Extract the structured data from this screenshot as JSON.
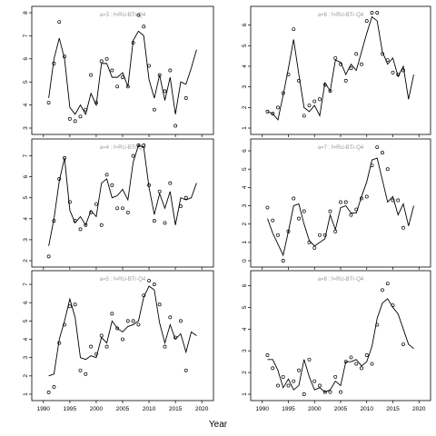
{
  "figure": {
    "xlabel": "Year"
  },
  "colors": {
    "line": "#000000",
    "points": "#000000",
    "title": "#999999",
    "frame": "#000000"
  },
  "chart_data": [
    {
      "type": "line",
      "title": "a=3 : f=RU-BTr-Q4",
      "xlim": [
        1989,
        2021
      ],
      "ylim": [
        3,
        8
      ],
      "yticks": [
        3,
        4,
        5,
        6,
        7,
        8
      ],
      "series": [
        {
          "type": "line",
          "x": [
            1991,
            1992,
            1993,
            1994,
            1995,
            1996,
            1997,
            1998,
            1999,
            2000,
            2001,
            2002,
            2003,
            2004,
            2005,
            2006,
            2007,
            2008,
            2009,
            2010,
            2011,
            2012,
            2013,
            2014,
            2015,
            2016,
            2017,
            2018,
            2019
          ],
          "y": [
            4.3,
            6.0,
            6.9,
            6.0,
            3.9,
            3.6,
            4.0,
            3.6,
            4.5,
            4.0,
            5.8,
            5.8,
            5.2,
            5.2,
            5.4,
            4.8,
            6.8,
            7.2,
            7.0,
            5.1,
            4.3,
            5.3,
            4.2,
            5.2,
            3.6,
            5.0,
            4.9,
            5.6,
            6.4
          ]
        },
        {
          "type": "scatter",
          "x": [
            1991,
            1992,
            1993,
            1994,
            1995,
            1996,
            1997,
            1998,
            1999,
            2000,
            2001,
            2002,
            2003,
            2004,
            2005,
            2006,
            2007,
            2008,
            2009,
            2010,
            2011,
            2012,
            2013,
            2014,
            2015,
            2017
          ],
          "y": [
            4.1,
            5.8,
            7.6,
            6.1,
            3.4,
            3.3,
            3.5,
            3.8,
            5.3,
            4.1,
            5.9,
            6.0,
            5.5,
            4.8,
            5.2,
            4.8,
            6.7,
            7.9,
            7.4,
            5.7,
            3.8,
            5.3,
            4.6,
            5.5,
            3.1,
            4.3
          ]
        }
      ],
      "xticks": [
        1990,
        1995,
        2000,
        2005,
        2010,
        2015,
        2020
      ],
      "show_xtick_labels": false
    },
    {
      "type": "line",
      "title": "a=6 : f=RU-BTr-Q4",
      "xlim": [
        1989,
        2021
      ],
      "ylim": [
        1,
        6.6
      ],
      "yticks": [
        1,
        2,
        3,
        4,
        5,
        6
      ],
      "series": [
        {
          "type": "line",
          "x": [
            1991,
            1992,
            1993,
            1994,
            1995,
            1996,
            1997,
            1998,
            1999,
            2000,
            2001,
            2002,
            2003,
            2004,
            2005,
            2006,
            2007,
            2008,
            2009,
            2010,
            2011,
            2012,
            2013,
            2014,
            2015,
            2016,
            2017,
            2018,
            2019
          ],
          "y": [
            1.8,
            1.7,
            1.4,
            2.6,
            3.9,
            5.3,
            3.6,
            2.0,
            1.8,
            2.1,
            1.6,
            3.2,
            2.8,
            4.3,
            4.2,
            3.6,
            4.1,
            3.8,
            4.7,
            5.6,
            6.4,
            6.2,
            4.7,
            4.1,
            4.4,
            3.5,
            4.0,
            2.4,
            3.6
          ]
        },
        {
          "type": "scatter",
          "x": [
            1991,
            1992,
            1993,
            1994,
            1995,
            1996,
            1997,
            1998,
            1999,
            2000,
            2001,
            2002,
            2003,
            2004,
            2005,
            2006,
            2007,
            2008,
            2009,
            2010,
            2011,
            2012,
            2013,
            2014,
            2015,
            2016,
            2017
          ],
          "y": [
            1.8,
            1.7,
            2.0,
            2.7,
            3.6,
            5.8,
            3.3,
            1.6,
            2.1,
            2.3,
            2.4,
            3.1,
            2.8,
            4.4,
            4.1,
            3.3,
            3.9,
            4.6,
            4.1,
            6.2,
            6.6,
            6.6,
            4.6,
            4.3,
            3.7,
            3.6,
            3.8
          ]
        }
      ],
      "xticks": [
        1990,
        1995,
        2000,
        2005,
        2010,
        2015,
        2020
      ],
      "show_xtick_labels": false
    },
    {
      "type": "line",
      "title": "a=4 : f=RU-BTr-Q4",
      "xlim": [
        1989,
        2021
      ],
      "ylim": [
        2,
        7.5
      ],
      "yticks": [
        2,
        3,
        4,
        5,
        6,
        7
      ],
      "series": [
        {
          "type": "line",
          "x": [
            1991,
            1992,
            1993,
            1994,
            1995,
            1996,
            1997,
            1998,
            1999,
            2000,
            2001,
            2002,
            2003,
            2004,
            2005,
            2006,
            2007,
            2008,
            2009,
            2010,
            2011,
            2012,
            2013,
            2014,
            2015,
            2016,
            2017,
            2018,
            2019
          ],
          "y": [
            2.7,
            4.0,
            5.8,
            6.9,
            4.4,
            3.8,
            4.1,
            3.7,
            4.4,
            4.1,
            5.7,
            5.9,
            5.0,
            5.1,
            5.4,
            4.9,
            6.7,
            7.5,
            7.4,
            5.5,
            4.2,
            5.2,
            4.5,
            5.3,
            3.7,
            5.0,
            4.9,
            5.0,
            5.7
          ]
        },
        {
          "type": "scatter",
          "x": [
            1991,
            1992,
            1993,
            1994,
            1995,
            1996,
            1997,
            1998,
            1999,
            2000,
            2001,
            2002,
            2003,
            2004,
            2005,
            2006,
            2007,
            2008,
            2009,
            2010,
            2011,
            2012,
            2013,
            2014,
            2016,
            2017
          ],
          "y": [
            2.2,
            3.9,
            5.9,
            6.9,
            4.8,
            3.9,
            3.5,
            3.7,
            4.3,
            4.7,
            3.7,
            6.1,
            5.6,
            4.5,
            4.5,
            4.3,
            7.0,
            7.5,
            7.5,
            5.6,
            3.9,
            5.3,
            3.8,
            5.7,
            4.6,
            5.0
          ]
        }
      ],
      "xticks": [
        1990,
        1995,
        2000,
        2005,
        2010,
        2015,
        2020
      ],
      "show_xtick_labels": false
    },
    {
      "type": "line",
      "title": "a=7 : f=RU-BTr-Q4",
      "xlim": [
        1989,
        2021
      ],
      "ylim": [
        0,
        6.3
      ],
      "yticks": [
        0,
        1,
        2,
        3,
        4,
        5,
        6
      ],
      "series": [
        {
          "type": "line",
          "x": [
            1991,
            1992,
            1993,
            1994,
            1995,
            1996,
            1997,
            1998,
            1999,
            2000,
            2001,
            2002,
            2003,
            2004,
            2005,
            2006,
            2007,
            2008,
            2009,
            2010,
            2011,
            2012,
            2013,
            2014,
            2015,
            2016,
            2017,
            2018,
            2019
          ],
          "y": [
            2.3,
            1.5,
            0.9,
            0.3,
            1.6,
            3.0,
            3.1,
            2.0,
            1.1,
            0.8,
            1.0,
            1.2,
            2.5,
            1.7,
            2.9,
            3.0,
            2.6,
            2.6,
            3.5,
            4.3,
            5.5,
            5.6,
            4.4,
            3.2,
            3.5,
            2.5,
            3.1,
            1.9,
            3.0
          ]
        },
        {
          "type": "scatter",
          "x": [
            1991,
            1992,
            1993,
            1994,
            1995,
            1996,
            1997,
            1998,
            1999,
            2000,
            2001,
            2002,
            2003,
            2004,
            2005,
            2006,
            2007,
            2008,
            2009,
            2010,
            2011,
            2012,
            2013,
            2014,
            2015,
            2016,
            2017
          ],
          "y": [
            2.9,
            2.2,
            1.4,
            0.0,
            1.6,
            3.4,
            2.3,
            2.7,
            1.0,
            0.7,
            1.4,
            1.4,
            2.7,
            1.6,
            3.2,
            3.2,
            2.5,
            2.8,
            3.4,
            3.5,
            5.2,
            6.2,
            5.9,
            5.0,
            3.3,
            3.3,
            1.8
          ]
        }
      ],
      "xticks": [
        1990,
        1995,
        2000,
        2005,
        2010,
        2015,
        2020
      ],
      "show_xtick_labels": false
    },
    {
      "type": "line",
      "title": "a=5 : f=RU-BTr-Q4",
      "xlim": [
        1989,
        2021
      ],
      "ylim": [
        1,
        7.4
      ],
      "yticks": [
        1,
        2,
        3,
        4,
        5,
        6,
        7
      ],
      "series": [
        {
          "type": "line",
          "x": [
            1991,
            1992,
            1993,
            1994,
            1995,
            1996,
            1997,
            1998,
            1999,
            2000,
            2001,
            2002,
            2003,
            2004,
            2005,
            2006,
            2007,
            2008,
            2009,
            2010,
            2011,
            2012,
            2013,
            2014,
            2015,
            2016,
            2017,
            2018,
            2019
          ],
          "y": [
            2.0,
            2.1,
            4.0,
            5.0,
            6.2,
            5.2,
            3.0,
            2.9,
            3.1,
            3.0,
            4.1,
            3.8,
            5.0,
            4.6,
            4.4,
            4.7,
            4.8,
            5.0,
            6.3,
            6.9,
            6.7,
            4.9,
            3.8,
            4.8,
            4.0,
            4.3,
            3.3,
            4.4,
            4.2
          ]
        },
        {
          "type": "scatter",
          "x": [
            1991,
            1992,
            1993,
            1994,
            1995,
            1996,
            1997,
            1998,
            1999,
            2000,
            2001,
            2002,
            2003,
            2004,
            2005,
            2006,
            2007,
            2008,
            2009,
            2010,
            2011,
            2012,
            2013,
            2014,
            2015,
            2016,
            2017
          ],
          "y": [
            1.1,
            1.4,
            3.8,
            4.8,
            5.8,
            5.9,
            2.3,
            2.1,
            3.6,
            3.2,
            4.2,
            3.6,
            5.4,
            4.6,
            4.0,
            5.0,
            5.0,
            4.8,
            6.4,
            7.2,
            7.0,
            5.9,
            3.6,
            5.2,
            4.1,
            5.0,
            2.3
          ]
        }
      ],
      "xticks": [
        1990,
        1995,
        2000,
        2005,
        2010,
        2015,
        2020
      ],
      "show_xtick_labels": true
    },
    {
      "type": "line",
      "title": "a=8 : f=RU-BTr-Q4",
      "xlim": [
        1989,
        2021
      ],
      "ylim": [
        1,
        6.4
      ],
      "yticks": [
        1,
        2,
        3,
        4,
        5,
        6
      ],
      "series": [
        {
          "type": "line",
          "x": [
            1991,
            1992,
            1993,
            1994,
            1995,
            1996,
            1997,
            1998,
            1999,
            2000,
            2001,
            2002,
            2003,
            2004,
            2005,
            2006,
            2007,
            2008,
            2009,
            2010,
            2011,
            2012,
            2013,
            2014,
            2015,
            2016,
            2017,
            2018,
            2019
          ],
          "y": [
            2.6,
            2.6,
            2.1,
            1.3,
            1.7,
            1.2,
            1.4,
            2.6,
            1.8,
            1.2,
            1.3,
            1.1,
            1.2,
            1.6,
            1.4,
            2.5,
            2.5,
            2.6,
            2.3,
            2.5,
            3.2,
            4.5,
            5.2,
            5.4,
            5.0,
            4.7,
            4.0,
            3.3,
            3.1
          ]
        },
        {
          "type": "scatter",
          "x": [
            1991,
            1992,
            1993,
            1994,
            1995,
            1996,
            1997,
            1998,
            1999,
            2000,
            2001,
            2002,
            2003,
            2004,
            2005,
            2006,
            2007,
            2008,
            2009,
            2010,
            2011,
            2012,
            2013,
            2014,
            2015,
            2017
          ],
          "y": [
            2.8,
            2.2,
            1.4,
            1.8,
            1.4,
            1.6,
            2.1,
            1.0,
            2.6,
            1.6,
            1.4,
            1.1,
            1.1,
            1.8,
            1.1,
            2.5,
            2.7,
            2.4,
            2.2,
            2.8,
            2.4,
            4.2,
            5.8,
            6.1,
            5.1,
            3.3
          ]
        }
      ],
      "xticks": [
        1990,
        1995,
        2000,
        2005,
        2010,
        2015,
        2020
      ],
      "show_xtick_labels": true
    }
  ]
}
